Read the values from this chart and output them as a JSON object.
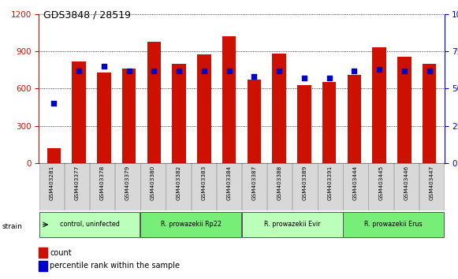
{
  "title": "GDS3848 / 28519",
  "samples": [
    "GSM403281",
    "GSM403377",
    "GSM403378",
    "GSM403379",
    "GSM403380",
    "GSM403382",
    "GSM403383",
    "GSM403384",
    "GSM403387",
    "GSM403388",
    "GSM403389",
    "GSM403391",
    "GSM403444",
    "GSM403445",
    "GSM403446",
    "GSM403447"
  ],
  "counts": [
    120,
    820,
    730,
    760,
    975,
    800,
    875,
    1020,
    670,
    880,
    625,
    655,
    710,
    935,
    855,
    800
  ],
  "percentiles": [
    40,
    62,
    65,
    62,
    62,
    62,
    62,
    62,
    58,
    62,
    57,
    57,
    62,
    63,
    62,
    62
  ],
  "groups": [
    {
      "label": "control, uninfected",
      "start": 0,
      "end": 4
    },
    {
      "label": "R. prowazekii Rp22",
      "start": 4,
      "end": 8
    },
    {
      "label": "R. prowazekii Evir",
      "start": 8,
      "end": 12
    },
    {
      "label": "R. prowazekii Erus",
      "start": 12,
      "end": 16
    }
  ],
  "bar_color": "#cc1100",
  "dot_color": "#0000cc",
  "left_ylim": [
    0,
    1200
  ],
  "right_ylim": [
    0,
    100
  ],
  "left_yticks": [
    0,
    300,
    600,
    900,
    1200
  ],
  "right_yticks": [
    0,
    25,
    50,
    75,
    100
  ],
  "title_color": "#000000",
  "left_axis_color": "#cc1100",
  "right_axis_color": "#0000cc",
  "legend_count_label": "count",
  "legend_pct_label": "percentile rank within the sample",
  "label_bg": "#d8d8d8",
  "group_colors": [
    "#bbffbb",
    "#77ee77",
    "#bbffbb",
    "#77ee77"
  ],
  "strain_label": "strain"
}
